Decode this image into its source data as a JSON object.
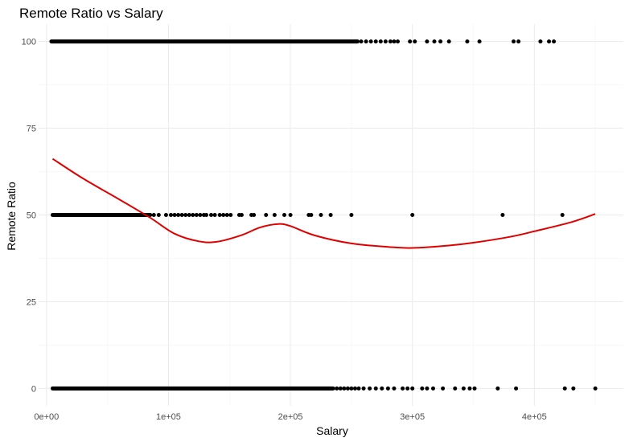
{
  "chart_data": {
    "type": "scatter",
    "title": "Remote Ratio vs Salary",
    "xlabel": "Salary",
    "ylabel": "Remote Ratio",
    "xlim": [
      -6500,
      473000
    ],
    "ylim": [
      -5,
      105
    ],
    "x_ticks": [
      0,
      100000,
      200000,
      300000,
      400000
    ],
    "x_tick_labels": [
      "0e+00",
      "1e+05",
      "2e+05",
      "3e+05",
      "4e+05"
    ],
    "y_ticks": [
      0,
      25,
      50,
      75,
      100
    ],
    "y_tick_labels": [
      "0",
      "25",
      "50",
      "75",
      "100"
    ],
    "grid": true,
    "theme": "minimal",
    "colors": {
      "points": "#000000",
      "trend": "#e00000"
    },
    "series": [
      {
        "type": "points",
        "dense_ranges": [
          {
            "y": 100,
            "x": [
              4000,
              255000
            ]
          },
          {
            "y": 50,
            "x": [
              5000,
              85000
            ]
          },
          {
            "y": 0,
            "x": [
              5000,
              235000
            ]
          }
        ],
        "points": [
          {
            "x": 258000,
            "y": 100
          },
          {
            "x": 262000,
            "y": 100
          },
          {
            "x": 266000,
            "y": 100
          },
          {
            "x": 270000,
            "y": 100
          },
          {
            "x": 274000,
            "y": 100
          },
          {
            "x": 278000,
            "y": 100
          },
          {
            "x": 282000,
            "y": 100
          },
          {
            "x": 285000,
            "y": 100
          },
          {
            "x": 288000,
            "y": 100
          },
          {
            "x": 298000,
            "y": 100
          },
          {
            "x": 302000,
            "y": 100
          },
          {
            "x": 312000,
            "y": 100
          },
          {
            "x": 318000,
            "y": 100
          },
          {
            "x": 323000,
            "y": 100
          },
          {
            "x": 330000,
            "y": 100
          },
          {
            "x": 345000,
            "y": 100
          },
          {
            "x": 355000,
            "y": 100
          },
          {
            "x": 383000,
            "y": 100
          },
          {
            "x": 387000,
            "y": 100
          },
          {
            "x": 405000,
            "y": 100
          },
          {
            "x": 412000,
            "y": 100
          },
          {
            "x": 416000,
            "y": 100
          },
          {
            "x": 88000,
            "y": 50
          },
          {
            "x": 92000,
            "y": 50
          },
          {
            "x": 98000,
            "y": 50
          },
          {
            "x": 102000,
            "y": 50
          },
          {
            "x": 105000,
            "y": 50
          },
          {
            "x": 108000,
            "y": 50
          },
          {
            "x": 111000,
            "y": 50
          },
          {
            "x": 114000,
            "y": 50
          },
          {
            "x": 117000,
            "y": 50
          },
          {
            "x": 120000,
            "y": 50
          },
          {
            "x": 123000,
            "y": 50
          },
          {
            "x": 126000,
            "y": 50
          },
          {
            "x": 129000,
            "y": 50
          },
          {
            "x": 131000,
            "y": 50
          },
          {
            "x": 135000,
            "y": 50
          },
          {
            "x": 138000,
            "y": 50
          },
          {
            "x": 142000,
            "y": 50
          },
          {
            "x": 145000,
            "y": 50
          },
          {
            "x": 148000,
            "y": 50
          },
          {
            "x": 151000,
            "y": 50
          },
          {
            "x": 158000,
            "y": 50
          },
          {
            "x": 160000,
            "y": 50
          },
          {
            "x": 168000,
            "y": 50
          },
          {
            "x": 170000,
            "y": 50
          },
          {
            "x": 180000,
            "y": 50
          },
          {
            "x": 187000,
            "y": 50
          },
          {
            "x": 195000,
            "y": 50
          },
          {
            "x": 200000,
            "y": 50
          },
          {
            "x": 215000,
            "y": 50
          },
          {
            "x": 217000,
            "y": 50
          },
          {
            "x": 225000,
            "y": 50
          },
          {
            "x": 233000,
            "y": 50
          },
          {
            "x": 250000,
            "y": 50
          },
          {
            "x": 300000,
            "y": 50
          },
          {
            "x": 374000,
            "y": 50
          },
          {
            "x": 423000,
            "y": 50
          },
          {
            "x": 238000,
            "y": 0
          },
          {
            "x": 241000,
            "y": 0
          },
          {
            "x": 244000,
            "y": 0
          },
          {
            "x": 247000,
            "y": 0
          },
          {
            "x": 250000,
            "y": 0
          },
          {
            "x": 253000,
            "y": 0
          },
          {
            "x": 256000,
            "y": 0
          },
          {
            "x": 260000,
            "y": 0
          },
          {
            "x": 265000,
            "y": 0
          },
          {
            "x": 270000,
            "y": 0
          },
          {
            "x": 275000,
            "y": 0
          },
          {
            "x": 280000,
            "y": 0
          },
          {
            "x": 285000,
            "y": 0
          },
          {
            "x": 292000,
            "y": 0
          },
          {
            "x": 296000,
            "y": 0
          },
          {
            "x": 300000,
            "y": 0
          },
          {
            "x": 308000,
            "y": 0
          },
          {
            "x": 312000,
            "y": 0
          },
          {
            "x": 317000,
            "y": 0
          },
          {
            "x": 325000,
            "y": 0
          },
          {
            "x": 335000,
            "y": 0
          },
          {
            "x": 342000,
            "y": 0
          },
          {
            "x": 347000,
            "y": 0
          },
          {
            "x": 351000,
            "y": 0
          },
          {
            "x": 370000,
            "y": 0
          },
          {
            "x": 385000,
            "y": 0
          },
          {
            "x": 425000,
            "y": 0
          },
          {
            "x": 432000,
            "y": 0
          },
          {
            "x": 450000,
            "y": 0
          }
        ]
      },
      {
        "type": "smooth",
        "x": [
          5000,
          30000,
          60000,
          85000,
          105000,
          125000,
          140000,
          160000,
          175000,
          190000,
          200000,
          220000,
          250000,
          280000,
          300000,
          330000,
          350000,
          380000,
          400000,
          430000,
          450000
        ],
        "y": [
          66.2,
          60.5,
          54.4,
          49.2,
          44.6,
          42.4,
          42.3,
          44.2,
          46.4,
          47.4,
          46.8,
          44.1,
          41.8,
          40.8,
          40.5,
          41.2,
          42.0,
          43.7,
          45.3,
          47.9,
          50.3
        ]
      }
    ]
  }
}
